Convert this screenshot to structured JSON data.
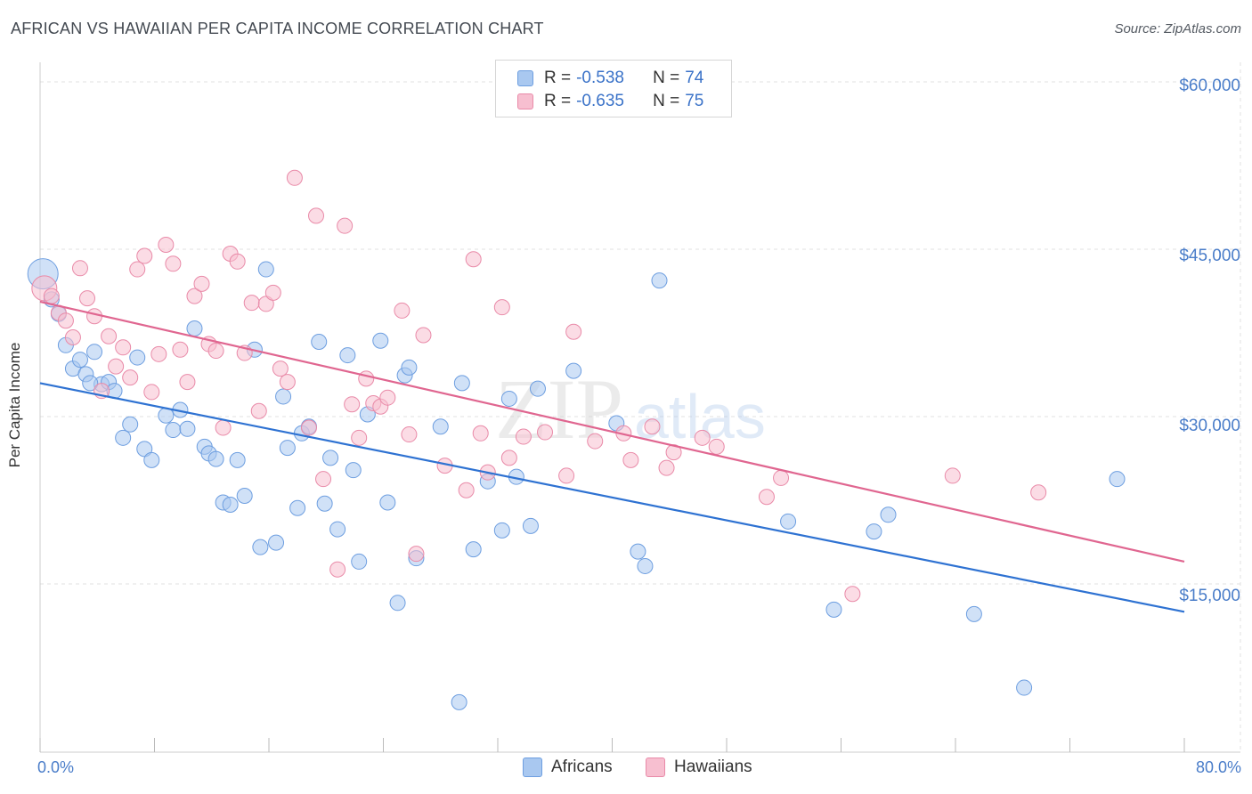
{
  "title": "AFRICAN VS HAWAIIAN PER CAPITA INCOME CORRELATION CHART",
  "source": "Source: ZipAtlas.com",
  "watermark": {
    "zip": "ZIP",
    "atlas": "atlas"
  },
  "legend": {
    "rows": [
      {
        "r_label": "R =",
        "r_value": "-0.538",
        "n_label": "N =",
        "n_value": "74"
      },
      {
        "r_label": "R =",
        "r_value": "-0.635",
        "n_label": "N =",
        "n_value": "75"
      }
    ]
  },
  "bottom_legend": {
    "africans": "Africans",
    "hawaiians": "Hawaiians"
  },
  "y_ticks": [
    "$60,000",
    "$45,000",
    "$30,000",
    "$15,000"
  ],
  "x_ticks": {
    "left": "0.0%",
    "right": "80.0%"
  },
  "colors": {
    "africans_fill": "#a9c8f0",
    "africans_stroke": "#6d9ee0",
    "africans_line": "#2e72d2",
    "hawaiians_fill": "#f7bfd0",
    "hawaiians_stroke": "#e98aa8",
    "hawaiians_line": "#e06690",
    "tick_text": "#4a7dc9",
    "grid": "#e2e2e2"
  },
  "chart_data": {
    "type": "scatter",
    "title": "AFRICAN VS HAWAIIAN PER CAPITA INCOME CORRELATION CHART",
    "xlabel": "",
    "ylabel": "Per Capita Income",
    "xlim": [
      0,
      80
    ],
    "ylim": [
      0,
      63000
    ],
    "x_unit": "%",
    "grid": true,
    "legend_position": "top-center",
    "series": [
      {
        "name": "Africans",
        "r": -0.538,
        "n": 74,
        "trend": {
          "x": [
            0,
            80
          ],
          "y": [
            33000,
            12500
          ]
        },
        "points": [
          [
            0.2,
            42800
          ],
          [
            0.8,
            40500
          ],
          [
            1.3,
            39200
          ],
          [
            1.8,
            36400
          ],
          [
            2.3,
            34300
          ],
          [
            2.8,
            35100
          ],
          [
            3.2,
            33800
          ],
          [
            3.8,
            35800
          ],
          [
            4.3,
            32900
          ],
          [
            4.8,
            33100
          ],
          [
            5.2,
            32300
          ],
          [
            5.8,
            28100
          ],
          [
            6.3,
            29300
          ],
          [
            6.8,
            35300
          ],
          [
            7.3,
            27100
          ],
          [
            7.8,
            26100
          ],
          [
            8.8,
            30100
          ],
          [
            9.3,
            28800
          ],
          [
            9.8,
            30600
          ],
          [
            10.3,
            28900
          ],
          [
            10.8,
            37900
          ],
          [
            11.5,
            27300
          ],
          [
            11.8,
            26700
          ],
          [
            12.3,
            26200
          ],
          [
            12.8,
            22300
          ],
          [
            13.3,
            22100
          ],
          [
            13.8,
            26100
          ],
          [
            14.3,
            22900
          ],
          [
            15.0,
            36000
          ],
          [
            15.4,
            18300
          ],
          [
            15.8,
            43200
          ],
          [
            16.5,
            18700
          ],
          [
            17.0,
            31800
          ],
          [
            17.3,
            27200
          ],
          [
            18.0,
            21800
          ],
          [
            18.3,
            28500
          ],
          [
            18.8,
            29100
          ],
          [
            19.5,
            36700
          ],
          [
            19.9,
            22200
          ],
          [
            20.3,
            26300
          ],
          [
            20.8,
            19900
          ],
          [
            21.5,
            35500
          ],
          [
            21.9,
            25200
          ],
          [
            22.3,
            17000
          ],
          [
            22.9,
            30200
          ],
          [
            23.8,
            36800
          ],
          [
            24.3,
            22300
          ],
          [
            25.0,
            13300
          ],
          [
            25.5,
            33700
          ],
          [
            25.8,
            34400
          ],
          [
            26.3,
            17300
          ],
          [
            28.0,
            29100
          ],
          [
            29.3,
            4400
          ],
          [
            29.5,
            33000
          ],
          [
            30.3,
            18100
          ],
          [
            31.3,
            24200
          ],
          [
            32.3,
            19800
          ],
          [
            32.8,
            31600
          ],
          [
            33.3,
            24600
          ],
          [
            34.3,
            20200
          ],
          [
            34.8,
            32500
          ],
          [
            37.3,
            34100
          ],
          [
            40.3,
            29400
          ],
          [
            41.8,
            17900
          ],
          [
            42.3,
            16600
          ],
          [
            43.3,
            42200
          ],
          [
            52.3,
            20600
          ],
          [
            55.5,
            12700
          ],
          [
            58.3,
            19700
          ],
          [
            59.3,
            21200
          ],
          [
            65.3,
            12300
          ],
          [
            68.8,
            5700
          ],
          [
            75.3,
            24400
          ],
          [
            3.5,
            33000
          ]
        ]
      },
      {
        "name": "Hawaiians",
        "r": -0.635,
        "n": 75,
        "trend": {
          "x": [
            0,
            80
          ],
          "y": [
            40300,
            17000
          ]
        },
        "points": [
          [
            0.3,
            41500
          ],
          [
            0.8,
            40800
          ],
          [
            1.3,
            39300
          ],
          [
            1.8,
            38600
          ],
          [
            2.3,
            37100
          ],
          [
            2.8,
            43300
          ],
          [
            3.3,
            40600
          ],
          [
            3.8,
            39000
          ],
          [
            4.3,
            32300
          ],
          [
            4.8,
            37200
          ],
          [
            5.3,
            34500
          ],
          [
            5.8,
            36200
          ],
          [
            6.3,
            33500
          ],
          [
            6.8,
            43200
          ],
          [
            7.3,
            44400
          ],
          [
            7.8,
            32200
          ],
          [
            8.3,
            35600
          ],
          [
            8.8,
            45400
          ],
          [
            9.3,
            43700
          ],
          [
            9.8,
            36000
          ],
          [
            10.3,
            33100
          ],
          [
            10.8,
            40800
          ],
          [
            11.3,
            41900
          ],
          [
            11.8,
            36500
          ],
          [
            12.3,
            35900
          ],
          [
            12.8,
            29000
          ],
          [
            13.3,
            44600
          ],
          [
            13.8,
            43900
          ],
          [
            14.3,
            35700
          ],
          [
            14.8,
            40200
          ],
          [
            15.3,
            30500
          ],
          [
            15.8,
            40100
          ],
          [
            16.3,
            41100
          ],
          [
            16.8,
            34300
          ],
          [
            17.3,
            33100
          ],
          [
            17.8,
            51400
          ],
          [
            18.8,
            29000
          ],
          [
            19.3,
            48000
          ],
          [
            19.8,
            24400
          ],
          [
            20.8,
            16300
          ],
          [
            21.3,
            47100
          ],
          [
            21.8,
            31100
          ],
          [
            22.3,
            28100
          ],
          [
            22.8,
            33400
          ],
          [
            23.3,
            31200
          ],
          [
            23.8,
            30900
          ],
          [
            24.3,
            31700
          ],
          [
            25.3,
            39500
          ],
          [
            25.8,
            28400
          ],
          [
            26.8,
            37300
          ],
          [
            28.3,
            25600
          ],
          [
            29.8,
            23400
          ],
          [
            30.3,
            44100
          ],
          [
            30.8,
            28500
          ],
          [
            31.3,
            25000
          ],
          [
            32.3,
            39800
          ],
          [
            32.8,
            26300
          ],
          [
            33.8,
            28200
          ],
          [
            35.3,
            28600
          ],
          [
            36.8,
            24700
          ],
          [
            37.3,
            37600
          ],
          [
            38.8,
            27800
          ],
          [
            41.3,
            26100
          ],
          [
            42.8,
            29100
          ],
          [
            43.8,
            25400
          ],
          [
            44.3,
            26800
          ],
          [
            46.3,
            28100
          ],
          [
            47.3,
            27300
          ],
          [
            50.8,
            22800
          ],
          [
            51.8,
            24500
          ],
          [
            56.8,
            14100
          ],
          [
            63.8,
            24700
          ],
          [
            69.8,
            23200
          ],
          [
            26.3,
            17700
          ],
          [
            40.8,
            28500
          ]
        ]
      }
    ]
  }
}
